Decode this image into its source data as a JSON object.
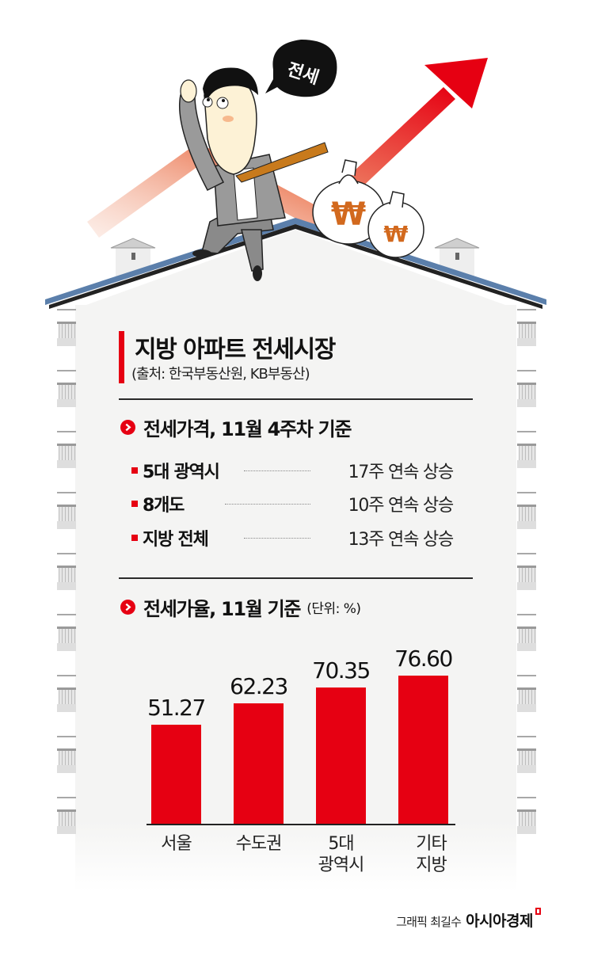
{
  "illustration": {
    "speech_bubble_text": "전세",
    "currency_symbol": "₩",
    "arrow_color": "#e60012",
    "roof_color": "#5b7fab",
    "tie_color": "#c87a1c"
  },
  "header": {
    "title": "지방 아파트 전세시장",
    "source": "(출처: 한국부동산원, KB부동산)",
    "accent_color": "#e60012"
  },
  "section1": {
    "heading": "전세가격, 11월 4주차 기준",
    "rows": [
      {
        "label": "5대 광역시",
        "value": "17주 연속 상승"
      },
      {
        "label": "8개도",
        "value": "10주 연속 상승"
      },
      {
        "label": "지방 전체",
        "value": "13주 연속 상승"
      }
    ]
  },
  "section2": {
    "heading": "전세가율, 11월 기준",
    "unit": "(단위: %)"
  },
  "chart_data": {
    "type": "bar",
    "title": "전세가율, 11월 기준",
    "unit": "%",
    "categories": [
      "서울",
      "수도권",
      "5대\n광역시",
      "기타\n지방"
    ],
    "values": [
      51.27,
      62.23,
      70.35,
      76.6
    ],
    "value_labels": [
      "51.27",
      "62.23",
      "70.35",
      "76.60"
    ],
    "xlabel": "",
    "ylabel": "",
    "grid": false,
    "legend": null,
    "bar_color": "#e60012"
  },
  "footer": {
    "credit": "그래픽 최길수",
    "brand": "아시아경제"
  }
}
